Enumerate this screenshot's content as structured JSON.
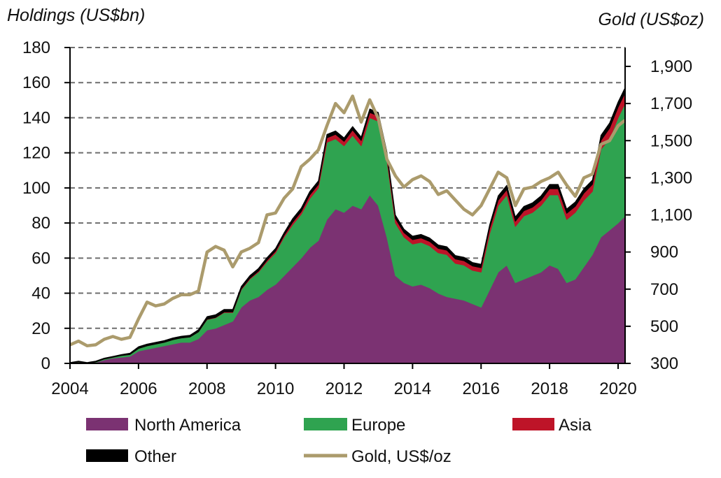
{
  "chart_data": {
    "type": "area",
    "title": "",
    "ylabel_left": "Holdings (US$bn)",
    "ylabel_right": "Gold (US$oz)",
    "xlabel": "",
    "ylim_left": [
      0,
      180
    ],
    "ylim_right": [
      300,
      2000
    ],
    "yticks_left": [
      "0",
      "20",
      "40",
      "60",
      "80",
      "100",
      "120",
      "140",
      "160",
      "180"
    ],
    "yticks_left_values": [
      0,
      20,
      40,
      60,
      80,
      100,
      120,
      140,
      160,
      180
    ],
    "yticks_right": [
      "300",
      "500",
      "700",
      "900",
      "1,100",
      "1,300",
      "1,500",
      "1,700",
      "1,900"
    ],
    "yticks_right_values": [
      300,
      500,
      700,
      900,
      1100,
      1300,
      1500,
      1700,
      1900
    ],
    "xticks": [
      "2004",
      "2006",
      "2008",
      "2010",
      "2012",
      "2014",
      "2016",
      "2018",
      "2020"
    ],
    "xticks_values": [
      2004,
      2006,
      2008,
      2010,
      2012,
      2014,
      2016,
      2018,
      2020
    ],
    "xlim": [
      2004,
      2020.3
    ],
    "grid": "horizontal-dashed",
    "legend_position": "bottom",
    "x": [
      2004.0,
      2004.25,
      2004.5,
      2004.75,
      2005.0,
      2005.25,
      2005.5,
      2005.75,
      2006.0,
      2006.25,
      2006.5,
      2006.75,
      2007.0,
      2007.25,
      2007.5,
      2007.75,
      2008.0,
      2008.25,
      2008.5,
      2008.75,
      2009.0,
      2009.25,
      2009.5,
      2009.75,
      2010.0,
      2010.25,
      2010.5,
      2010.75,
      2011.0,
      2011.25,
      2011.5,
      2011.75,
      2012.0,
      2012.25,
      2012.5,
      2012.75,
      2013.0,
      2013.25,
      2013.5,
      2013.75,
      2014.0,
      2014.25,
      2014.5,
      2014.75,
      2015.0,
      2015.25,
      2015.5,
      2015.75,
      2016.0,
      2016.25,
      2016.5,
      2016.75,
      2017.0,
      2017.25,
      2017.5,
      2017.75,
      2018.0,
      2018.25,
      2018.5,
      2018.75,
      2019.0,
      2019.25,
      2019.5,
      2019.75,
      2020.0,
      2020.2
    ],
    "series": [
      {
        "name": "North America",
        "kind": "area",
        "color": "#7b3272",
        "values": [
          0,
          0.5,
          0,
          0.5,
          2,
          3,
          3.5,
          4,
          7,
          8,
          9,
          10,
          11,
          12,
          12,
          14,
          19,
          20,
          22,
          24,
          32,
          36,
          38,
          42,
          45,
          50,
          55,
          60,
          66,
          70,
          82,
          88,
          86,
          90,
          88,
          96,
          90,
          72,
          50,
          46,
          44,
          45,
          43,
          40,
          38,
          37,
          36,
          34,
          32,
          42,
          52,
          56,
          46,
          48,
          50,
          52,
          56,
          54,
          46,
          48,
          55,
          62,
          72,
          76,
          80,
          84
        ]
      },
      {
        "name": "Europe",
        "kind": "area",
        "color": "#2fa350",
        "values": [
          0,
          0.3,
          0,
          0.3,
          0.5,
          0.5,
          1,
          1,
          1.5,
          2,
          2,
          2,
          2.5,
          2.5,
          3,
          4,
          6,
          6,
          7,
          5,
          10,
          12,
          14,
          16,
          18,
          22,
          24,
          25,
          28,
          30,
          44,
          40,
          38,
          40,
          36,
          44,
          48,
          44,
          30,
          26,
          24,
          24,
          24,
          23,
          24,
          20,
          20,
          19,
          20,
          32,
          38,
          40,
          32,
          36,
          36,
          38,
          40,
          42,
          36,
          38,
          38,
          36,
          50,
          52,
          60,
          64
        ]
      },
      {
        "name": "Asia",
        "kind": "area",
        "color": "#be1428",
        "values": [
          0,
          0,
          0,
          0,
          0,
          0,
          0,
          0,
          0,
          0,
          0,
          0,
          0,
          0,
          0,
          0,
          0.2,
          0.2,
          0.3,
          0.3,
          0.4,
          0.5,
          0.6,
          0.8,
          1,
          1,
          1.5,
          1.5,
          2,
          2,
          2.5,
          2.5,
          2.5,
          3,
          3,
          3,
          3,
          2.5,
          2.5,
          2.5,
          2.5,
          2.5,
          2.5,
          2.5,
          2.5,
          2.5,
          2.5,
          2.5,
          2.5,
          3,
          3,
          3,
          3,
          3,
          3,
          3,
          3.5,
          3.5,
          3.5,
          3.5,
          4,
          4,
          5,
          6,
          6,
          6
        ]
      },
      {
        "name": "Other",
        "kind": "area",
        "color": "#000000",
        "values": [
          0.5,
          0.5,
          0.5,
          0.5,
          0.5,
          0.5,
          0.5,
          0.8,
          1,
          1,
          1,
          1,
          1,
          1,
          1,
          1.2,
          1.5,
          1.5,
          1.5,
          1.5,
          1.5,
          1.5,
          1.5,
          1.5,
          1.5,
          1.5,
          2,
          2,
          2,
          2,
          2,
          2,
          2,
          2,
          2,
          2,
          2,
          2,
          2,
          2,
          2,
          2,
          2,
          2,
          2,
          2,
          2,
          2,
          2,
          2,
          2.5,
          2.5,
          2.5,
          2.5,
          2.5,
          2.5,
          2.5,
          2.5,
          2.5,
          2.5,
          2.5,
          2.5,
          3,
          3,
          3,
          3
        ]
      },
      {
        "name": "Gold, US$/oz",
        "kind": "line",
        "color": "#ab9b6c",
        "axis": "right",
        "values": [
          400,
          420,
          395,
          400,
          430,
          445,
          430,
          440,
          540,
          630,
          610,
          620,
          650,
          670,
          670,
          690,
          900,
          930,
          910,
          820,
          900,
          920,
          950,
          1100,
          1110,
          1190,
          1240,
          1360,
          1400,
          1450,
          1580,
          1700,
          1650,
          1740,
          1600,
          1720,
          1620,
          1400,
          1310,
          1250,
          1290,
          1310,
          1280,
          1210,
          1230,
          1180,
          1130,
          1100,
          1150,
          1240,
          1330,
          1300,
          1150,
          1240,
          1250,
          1280,
          1300,
          1330,
          1260,
          1200,
          1300,
          1320,
          1480,
          1500,
          1580,
          1610
        ]
      }
    ]
  },
  "legend": [
    {
      "label": "North America",
      "kind": "swatch",
      "color": "#7b3272"
    },
    {
      "label": "Europe",
      "kind": "swatch",
      "color": "#2fa350"
    },
    {
      "label": "Asia",
      "kind": "swatch",
      "color": "#be1428"
    },
    {
      "label": "Other",
      "kind": "swatch",
      "color": "#000000"
    },
    {
      "label": "Gold, US$/oz",
      "kind": "line",
      "color": "#ab9b6c"
    }
  ]
}
